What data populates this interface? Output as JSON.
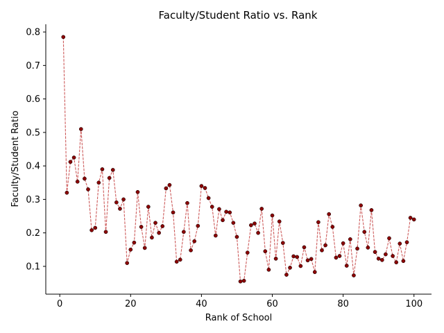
{
  "chart_data": {
    "type": "line",
    "title": "Faculty/Student Ratio vs. Rank",
    "xlabel": "Rank of School",
    "ylabel": "Faculty/Student Ratio",
    "xlim": [
      -3.95,
      104.95
    ],
    "ylim": [
      0.017,
      0.823
    ],
    "xticks": [
      0,
      20,
      40,
      60,
      80,
      100
    ],
    "yticks": [
      0.1,
      0.2,
      0.3,
      0.4,
      0.5,
      0.6,
      0.7,
      0.8
    ],
    "grid": false,
    "line_style": "dashed",
    "line_color": "#cd5c5c",
    "marker_color": "#8b0000",
    "x": [
      1,
      2,
      3,
      4,
      5,
      6,
      7,
      8,
      9,
      10,
      11,
      12,
      13,
      14,
      15,
      16,
      17,
      18,
      19,
      20,
      21,
      22,
      23,
      24,
      25,
      26,
      27,
      28,
      29,
      30,
      31,
      32,
      33,
      34,
      35,
      36,
      37,
      38,
      39,
      40,
      41,
      42,
      43,
      44,
      45,
      46,
      47,
      48,
      49,
      50,
      51,
      52,
      53,
      54,
      55,
      56,
      57,
      58,
      59,
      60,
      61,
      62,
      63,
      64,
      65,
      66,
      67,
      68,
      69,
      70,
      71,
      72,
      73,
      74,
      75,
      76,
      77,
      78,
      79,
      80,
      81,
      82,
      83,
      84,
      85,
      86,
      87,
      88,
      89,
      90,
      91,
      92,
      93,
      94,
      95,
      96,
      97,
      98,
      99,
      100
    ],
    "y": [
      0.785,
      0.32,
      0.412,
      0.425,
      0.353,
      0.51,
      0.362,
      0.33,
      0.208,
      0.215,
      0.35,
      0.39,
      0.203,
      0.364,
      0.388,
      0.291,
      0.272,
      0.3,
      0.11,
      0.15,
      0.171,
      0.322,
      0.218,
      0.155,
      0.278,
      0.186,
      0.23,
      0.2,
      0.22,
      0.333,
      0.343,
      0.261,
      0.114,
      0.12,
      0.203,
      0.289,
      0.148,
      0.175,
      0.221,
      0.34,
      0.334,
      0.304,
      0.278,
      0.192,
      0.271,
      0.238,
      0.263,
      0.261,
      0.23,
      0.188,
      0.055,
      0.057,
      0.141,
      0.223,
      0.228,
      0.2,
      0.272,
      0.145,
      0.09,
      0.252,
      0.123,
      0.234,
      0.17,
      0.075,
      0.096,
      0.13,
      0.128,
      0.101,
      0.157,
      0.118,
      0.122,
      0.083,
      0.232,
      0.148,
      0.163,
      0.256,
      0.218,
      0.126,
      0.131,
      0.169,
      0.102,
      0.181,
      0.073,
      0.153,
      0.282,
      0.203,
      0.156,
      0.268,
      0.143,
      0.123,
      0.119,
      0.136,
      0.184,
      0.131,
      0.112,
      0.168,
      0.116,
      0.172,
      0.245,
      0.24
    ]
  }
}
